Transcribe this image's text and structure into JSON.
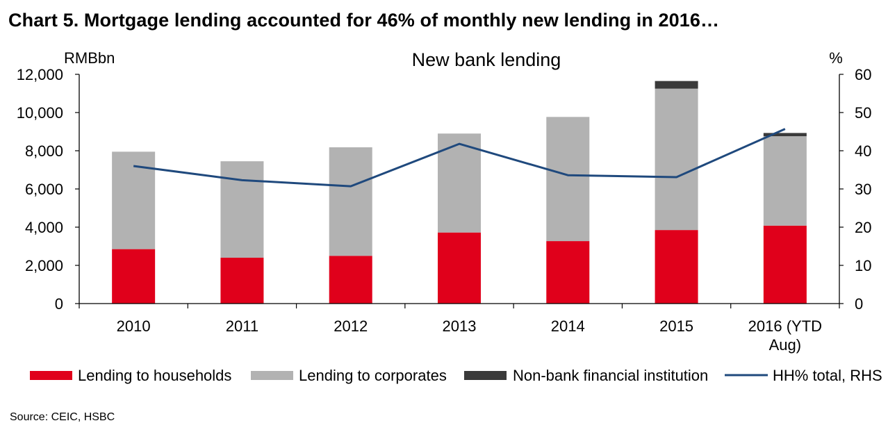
{
  "title": "Chart 5. Mortgage lending accounted for 46% of monthly new lending in 2016…",
  "source": "Source: CEIC, HSBC",
  "chart_data": {
    "type": "bar",
    "stacked": true,
    "subtitle": "New bank lending",
    "ylabel_left": "RMBbn",
    "ylabel_right": "%",
    "categories": [
      [
        "2010"
      ],
      [
        "2011"
      ],
      [
        "2012"
      ],
      [
        "2013"
      ],
      [
        "2014"
      ],
      [
        "2015"
      ],
      [
        "2016 (YTD",
        "Aug)"
      ]
    ],
    "ylim_left": [
      0,
      12000
    ],
    "yticks_left": [
      "0",
      "2,000",
      "4,000",
      "6,000",
      "8,000",
      "10,000",
      "12,000"
    ],
    "ylim_right": [
      0,
      60
    ],
    "yticks_right": [
      "0",
      "10",
      "20",
      "30",
      "40",
      "50",
      "60"
    ],
    "grid": false,
    "legend_position": "bottom",
    "series": [
      {
        "name": "Lending to households",
        "axis": "left",
        "kind": "bar",
        "color": "#e0001b",
        "values": [
          2850,
          2400,
          2500,
          3720,
          3270,
          3850,
          4080
        ]
      },
      {
        "name": "Lending to corporates",
        "axis": "left",
        "kind": "bar",
        "color": "#b2b2b2",
        "values": [
          5100,
          5050,
          5680,
          5180,
          6500,
          7400,
          4680
        ]
      },
      {
        "name": "Non-bank financial institution",
        "axis": "left",
        "kind": "bar",
        "color": "#3a3a3a",
        "values": [
          0,
          0,
          0,
          0,
          0,
          400,
          170
        ]
      },
      {
        "name": "HH% total, RHS",
        "axis": "right",
        "kind": "line",
        "color": "#1f497d",
        "values": [
          36,
          32.3,
          30.7,
          41.8,
          33.6,
          33.1,
          45.7
        ]
      }
    ]
  }
}
